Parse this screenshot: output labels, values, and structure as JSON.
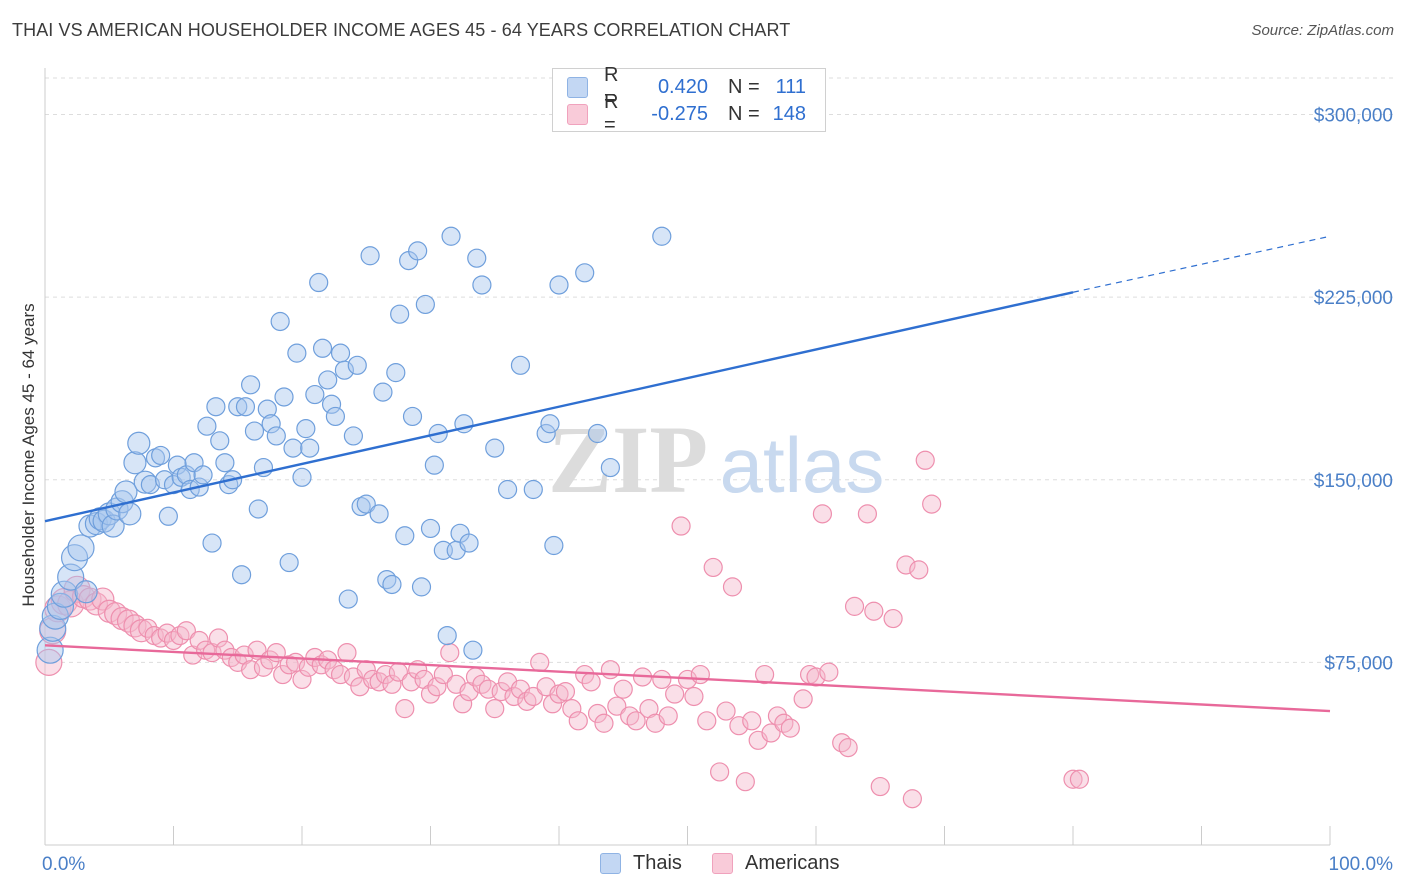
{
  "header": {
    "title": "THAI VS AMERICAN HOUSEHOLDER INCOME AGES 45 - 64 YEARS CORRELATION CHART",
    "source": "Source: ZipAtlas.com"
  },
  "legend": {
    "rows": [
      {
        "r_label": "R =",
        "r_value": "0.420",
        "n_label": "N =",
        "n_value": "111",
        "color": "#a7c5ee"
      },
      {
        "r_label": "R =",
        "r_value": "-0.275",
        "n_label": "N =",
        "n_value": "148",
        "color": "#f5b8cb"
      }
    ]
  },
  "bottom_legend": [
    {
      "label": "Thais",
      "color": "#a7c5ee"
    },
    {
      "label": "Americans",
      "color": "#f5b8cb"
    }
  ],
  "watermark": {
    "zip": "ZIP",
    "atlas": "atlas"
  },
  "chart_data": {
    "type": "scatter",
    "title": "THAI VS AMERICAN HOUSEHOLDER INCOME AGES 45 - 64 YEARS CORRELATION CHART",
    "xlabel": "",
    "ylabel": "Householder Income Ages 45 - 64 years",
    "xlim": [
      0,
      100
    ],
    "ylim": [
      0,
      315000
    ],
    "x_tick_labels": [
      "0.0%",
      "100.0%"
    ],
    "y_ticks": [
      75000,
      150000,
      225000,
      300000
    ],
    "y_tick_labels": [
      "$75,000",
      "$150,000",
      "$225,000",
      "$300,000"
    ],
    "grid": true,
    "legend_position": "top-center",
    "series": [
      {
        "name": "Thais",
        "color": "#a7c5ee",
        "stroke": "#6f9fdc",
        "trend": {
          "x_solid": [
            0,
            80
          ],
          "y_solid": [
            133000,
            227000
          ],
          "x_dashed": [
            80,
            100
          ],
          "y_dashed": [
            227000,
            250000
          ],
          "color": "#2f6fd0"
        },
        "points": [
          [
            0.4,
            80000
          ],
          [
            0.6,
            89000
          ],
          [
            0.8,
            94000
          ],
          [
            1.2,
            98000
          ],
          [
            1.5,
            103000
          ],
          [
            2.0,
            110000
          ],
          [
            2.3,
            118000
          ],
          [
            2.8,
            122000
          ],
          [
            3.2,
            104000
          ],
          [
            3.5,
            131000
          ],
          [
            4.0,
            132000
          ],
          [
            4.3,
            134000
          ],
          [
            4.6,
            133000
          ],
          [
            5.0,
            136000
          ],
          [
            5.3,
            131000
          ],
          [
            5.6,
            138000
          ],
          [
            6.0,
            141000
          ],
          [
            6.3,
            145000
          ],
          [
            6.6,
            136000
          ],
          [
            7.0,
            157000
          ],
          [
            7.3,
            165000
          ],
          [
            7.8,
            149000
          ],
          [
            8.2,
            148000
          ],
          [
            8.6,
            159000
          ],
          [
            9.0,
            160000
          ],
          [
            9.3,
            150000
          ],
          [
            9.6,
            135000
          ],
          [
            10.0,
            148000
          ],
          [
            10.3,
            156000
          ],
          [
            10.6,
            151000
          ],
          [
            11.0,
            152000
          ],
          [
            11.3,
            146000
          ],
          [
            11.6,
            157000
          ],
          [
            12.0,
            147000
          ],
          [
            12.3,
            152000
          ],
          [
            12.6,
            172000
          ],
          [
            13.0,
            124000
          ],
          [
            13.3,
            180000
          ],
          [
            13.6,
            166000
          ],
          [
            14.0,
            157000
          ],
          [
            14.3,
            148000
          ],
          [
            14.6,
            150000
          ],
          [
            15.0,
            180000
          ],
          [
            15.3,
            111000
          ],
          [
            15.6,
            180000
          ],
          [
            16.0,
            189000
          ],
          [
            16.3,
            170000
          ],
          [
            16.6,
            138000
          ],
          [
            17.0,
            155000
          ],
          [
            17.3,
            179000
          ],
          [
            17.6,
            173000
          ],
          [
            18.0,
            168000
          ],
          [
            18.3,
            215000
          ],
          [
            18.6,
            184000
          ],
          [
            19.0,
            116000
          ],
          [
            19.3,
            163000
          ],
          [
            19.6,
            202000
          ],
          [
            20.0,
            151000
          ],
          [
            20.3,
            171000
          ],
          [
            20.6,
            163000
          ],
          [
            21.0,
            185000
          ],
          [
            21.3,
            231000
          ],
          [
            21.6,
            204000
          ],
          [
            22.0,
            191000
          ],
          [
            22.3,
            181000
          ],
          [
            22.6,
            176000
          ],
          [
            23.0,
            202000
          ],
          [
            23.3,
            195000
          ],
          [
            23.6,
            101000
          ],
          [
            24.0,
            168000
          ],
          [
            24.3,
            197000
          ],
          [
            24.6,
            139000
          ],
          [
            25.0,
            140000
          ],
          [
            25.3,
            242000
          ],
          [
            26.0,
            136000
          ],
          [
            26.3,
            186000
          ],
          [
            26.6,
            109000
          ],
          [
            27.0,
            107000
          ],
          [
            27.3,
            194000
          ],
          [
            27.6,
            218000
          ],
          [
            28.0,
            127000
          ],
          [
            28.3,
            240000
          ],
          [
            28.6,
            176000
          ],
          [
            29.0,
            244000
          ],
          [
            29.3,
            106000
          ],
          [
            29.6,
            222000
          ],
          [
            30.0,
            130000
          ],
          [
            30.3,
            156000
          ],
          [
            30.6,
            169000
          ],
          [
            31.0,
            121000
          ],
          [
            31.3,
            86000
          ],
          [
            31.6,
            250000
          ],
          [
            32.0,
            121000
          ],
          [
            32.3,
            128000
          ],
          [
            32.6,
            173000
          ],
          [
            33.0,
            124000
          ],
          [
            33.3,
            80000
          ],
          [
            33.6,
            241000
          ],
          [
            34.0,
            230000
          ],
          [
            35.0,
            163000
          ],
          [
            36.0,
            146000
          ],
          [
            37.0,
            197000
          ],
          [
            38.0,
            146000
          ],
          [
            39.0,
            169000
          ],
          [
            39.3,
            173000
          ],
          [
            39.6,
            123000
          ],
          [
            40.0,
            230000
          ],
          [
            42.0,
            235000
          ],
          [
            43.0,
            169000
          ],
          [
            44.0,
            155000
          ],
          [
            48.0,
            250000
          ]
        ]
      },
      {
        "name": "Americans",
        "color": "#f5b8cb",
        "stroke": "#ee8fae",
        "trend": {
          "x_solid": [
            0,
            100
          ],
          "y_solid": [
            82000,
            55000
          ],
          "color": "#e8699a"
        },
        "points": [
          [
            0.3,
            75000
          ],
          [
            0.6,
            88000
          ],
          [
            1.0,
            97000
          ],
          [
            1.5,
            100000
          ],
          [
            2.0,
            99000
          ],
          [
            2.5,
            105000
          ],
          [
            3.0,
            102000
          ],
          [
            3.5,
            101000
          ],
          [
            4.0,
            99000
          ],
          [
            4.5,
            101000
          ],
          [
            5.0,
            96000
          ],
          [
            5.5,
            95000
          ],
          [
            6.0,
            93000
          ],
          [
            6.5,
            92000
          ],
          [
            7.0,
            90000
          ],
          [
            7.5,
            88000
          ],
          [
            8.0,
            89000
          ],
          [
            8.5,
            86000
          ],
          [
            9.0,
            85000
          ],
          [
            9.5,
            87000
          ],
          [
            10.0,
            84000
          ],
          [
            10.5,
            86000
          ],
          [
            11.0,
            88000
          ],
          [
            11.5,
            78000
          ],
          [
            12.0,
            84000
          ],
          [
            12.5,
            80000
          ],
          [
            13.0,
            79000
          ],
          [
            13.5,
            85000
          ],
          [
            14.0,
            80000
          ],
          [
            14.5,
            77000
          ],
          [
            15.0,
            75000
          ],
          [
            15.5,
            78000
          ],
          [
            16.0,
            72000
          ],
          [
            16.5,
            80000
          ],
          [
            17.0,
            73000
          ],
          [
            17.5,
            76000
          ],
          [
            18.0,
            79000
          ],
          [
            18.5,
            70000
          ],
          [
            19.0,
            74000
          ],
          [
            19.5,
            75000
          ],
          [
            20.0,
            68000
          ],
          [
            20.5,
            73000
          ],
          [
            21.0,
            77000
          ],
          [
            21.5,
            74000
          ],
          [
            22.0,
            76000
          ],
          [
            22.5,
            72000
          ],
          [
            23.0,
            70000
          ],
          [
            23.5,
            79000
          ],
          [
            24.0,
            69000
          ],
          [
            24.5,
            65000
          ],
          [
            25.0,
            72000
          ],
          [
            25.5,
            68000
          ],
          [
            26.0,
            67000
          ],
          [
            26.5,
            70000
          ],
          [
            27.0,
            66000
          ],
          [
            27.5,
            71000
          ],
          [
            28.0,
            56000
          ],
          [
            28.5,
            67000
          ],
          [
            29.0,
            72000
          ],
          [
            29.5,
            68000
          ],
          [
            30.0,
            62000
          ],
          [
            30.5,
            65000
          ],
          [
            31.0,
            70000
          ],
          [
            31.5,
            79000
          ],
          [
            32.0,
            66000
          ],
          [
            32.5,
            58000
          ],
          [
            33.0,
            63000
          ],
          [
            33.5,
            69000
          ],
          [
            34.0,
            66000
          ],
          [
            34.5,
            64000
          ],
          [
            35.0,
            56000
          ],
          [
            35.5,
            63000
          ],
          [
            36.0,
            67000
          ],
          [
            36.5,
            61000
          ],
          [
            37.0,
            64000
          ],
          [
            37.5,
            59000
          ],
          [
            38.0,
            61000
          ],
          [
            38.5,
            75000
          ],
          [
            39.0,
            65000
          ],
          [
            39.5,
            58000
          ],
          [
            40.0,
            62000
          ],
          [
            40.5,
            63000
          ],
          [
            41.0,
            56000
          ],
          [
            41.5,
            51000
          ],
          [
            42.0,
            70000
          ],
          [
            42.5,
            67000
          ],
          [
            43.0,
            54000
          ],
          [
            43.5,
            50000
          ],
          [
            44.0,
            72000
          ],
          [
            44.5,
            57000
          ],
          [
            45.0,
            64000
          ],
          [
            45.5,
            53000
          ],
          [
            46.0,
            51000
          ],
          [
            46.5,
            69000
          ],
          [
            47.0,
            56000
          ],
          [
            47.5,
            50000
          ],
          [
            48.0,
            68000
          ],
          [
            48.5,
            53000
          ],
          [
            49.0,
            62000
          ],
          [
            49.5,
            131000
          ],
          [
            50.0,
            68000
          ],
          [
            50.5,
            61000
          ],
          [
            51.0,
            70000
          ],
          [
            51.5,
            51000
          ],
          [
            52.0,
            114000
          ],
          [
            52.5,
            30000
          ],
          [
            53.0,
            55000
          ],
          [
            53.5,
            106000
          ],
          [
            54.0,
            49000
          ],
          [
            54.5,
            26000
          ],
          [
            55.0,
            51000
          ],
          [
            55.5,
            43000
          ],
          [
            56.0,
            70000
          ],
          [
            56.5,
            46000
          ],
          [
            57.0,
            53000
          ],
          [
            57.5,
            50000
          ],
          [
            58.0,
            48000
          ],
          [
            59.0,
            60000
          ],
          [
            59.5,
            70000
          ],
          [
            60.0,
            69000
          ],
          [
            60.5,
            136000
          ],
          [
            61.0,
            71000
          ],
          [
            62.0,
            42000
          ],
          [
            62.5,
            40000
          ],
          [
            63.0,
            98000
          ],
          [
            64.0,
            136000
          ],
          [
            64.5,
            96000
          ],
          [
            65.0,
            24000
          ],
          [
            66.0,
            93000
          ],
          [
            67.0,
            115000
          ],
          [
            67.5,
            19000
          ],
          [
            68.0,
            113000
          ],
          [
            68.5,
            158000
          ],
          [
            69.0,
            140000
          ],
          [
            80.0,
            27000
          ],
          [
            80.5,
            27000
          ]
        ]
      }
    ]
  }
}
